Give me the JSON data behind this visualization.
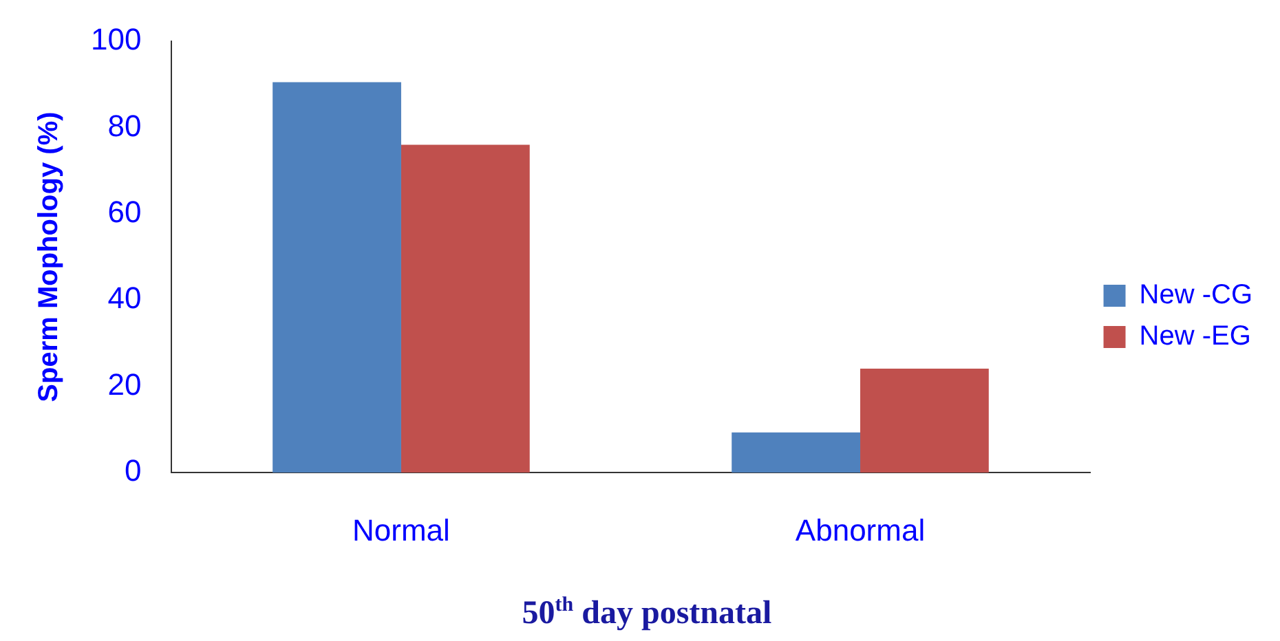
{
  "chart_data": {
    "type": "bar",
    "xlabel": "50$^{th}$ day postnatal",
    "ylabel": "Sperm Mophology (%)",
    "categories": [
      "Normal",
      "Abnormal"
    ],
    "series": [
      {
        "name": "New -CG",
        "color": "#4f81bd",
        "values": [
          90.5,
          9.3
        ]
      },
      {
        "name": "New -EG",
        "color": "#c0504d",
        "values": [
          76,
          24.1
        ]
      }
    ],
    "ylim": [
      0,
      100
    ],
    "yticks": [
      0,
      20,
      40,
      60,
      80,
      100
    ],
    "grid": false,
    "legend": "right"
  }
}
